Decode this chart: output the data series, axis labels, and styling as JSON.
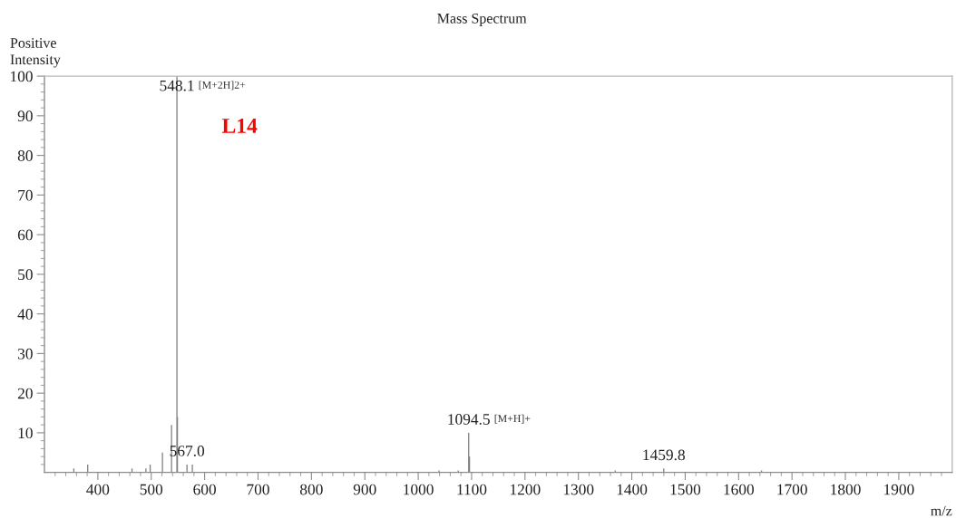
{
  "chart_data": {
    "type": "bar",
    "title": "Mass Spectrum",
    "xlabel": "m/z",
    "ylabel": "Positive\nIntensity",
    "x": [
      355,
      381,
      464,
      490,
      498,
      521,
      538,
      548.1,
      549,
      567,
      577,
      1039,
      1075,
      1094.5,
      1096,
      1369,
      1459.8,
      1643
    ],
    "values": [
      1,
      2,
      1,
      1,
      2,
      5,
      12,
      100,
      14,
      2,
      2,
      0.5,
      0.5,
      10,
      4,
      0.5,
      1,
      0.5
    ],
    "color": "#808080",
    "xlim": [
      300,
      2000
    ],
    "ylim": [
      0,
      100
    ],
    "xticks": [
      {
        "value": 320,
        "label": null
      },
      {
        "value": 340,
        "label": null
      },
      {
        "value": 360,
        "label": null
      },
      {
        "value": 380,
        "label": null
      },
      400,
      {
        "value": 420,
        "label": null
      },
      {
        "value": 440,
        "label": null
      },
      {
        "value": 460,
        "label": null
      },
      {
        "value": 480,
        "label": null
      },
      500,
      {
        "value": 520,
        "label": null
      },
      {
        "value": 540,
        "label": null
      },
      {
        "value": 560,
        "label": null
      },
      {
        "value": 580,
        "label": null
      },
      600,
      {
        "value": 620,
        "label": null
      },
      {
        "value": 640,
        "label": null
      },
      {
        "value": 660,
        "label": null
      },
      {
        "value": 680,
        "label": null
      },
      700,
      {
        "value": 720,
        "label": null
      },
      {
        "value": 740,
        "label": null
      },
      {
        "value": 760,
        "label": null
      },
      {
        "value": 780,
        "label": null
      },
      800,
      {
        "value": 820,
        "label": null
      },
      {
        "value": 840,
        "label": null
      },
      {
        "value": 860,
        "label": null
      },
      {
        "value": 880,
        "label": null
      },
      900,
      {
        "value": 920,
        "label": null
      },
      {
        "value": 940,
        "label": null
      },
      {
        "value": 960,
        "label": null
      },
      {
        "value": 980,
        "label": null
      },
      1000,
      {
        "value": 1020,
        "label": null
      },
      {
        "value": 1040,
        "label": null
      },
      {
        "value": 1060,
        "label": null
      },
      {
        "value": 1080,
        "label": null
      },
      1100,
      {
        "value": 1120,
        "label": null
      },
      {
        "value": 1140,
        "label": null
      },
      {
        "value": 1160,
        "label": null
      },
      {
        "value": 1180,
        "label": null
      },
      1200,
      {
        "value": 1220,
        "label": null
      },
      {
        "value": 1240,
        "label": null
      },
      {
        "value": 1260,
        "label": null
      },
      {
        "value": 1280,
        "label": null
      },
      1300,
      {
        "value": 1320,
        "label": null
      },
      {
        "value": 1340,
        "label": null
      },
      {
        "value": 1360,
        "label": null
      },
      {
        "value": 1380,
        "label": null
      },
      1400,
      {
        "value": 1420,
        "label": null
      },
      {
        "value": 1440,
        "label": null
      },
      {
        "value": 1460,
        "label": null
      },
      {
        "value": 1480,
        "label": null
      },
      1500,
      {
        "value": 1520,
        "label": null
      },
      {
        "value": 1540,
        "label": null
      },
      {
        "value": 1560,
        "label": null
      },
      {
        "value": 1580,
        "label": null
      },
      1600,
      {
        "value": 1620,
        "label": null
      },
      {
        "value": 1640,
        "label": null
      },
      {
        "value": 1660,
        "label": null
      },
      {
        "value": 1680,
        "label": null
      },
      1700,
      {
        "value": 1720,
        "label": null
      },
      {
        "value": 1740,
        "label": null
      },
      {
        "value": 1760,
        "label": null
      },
      {
        "value": 1780,
        "label": null
      },
      1800,
      {
        "value": 1820,
        "label": null
      },
      {
        "value": 1840,
        "label": null
      },
      {
        "value": 1860,
        "label": null
      },
      {
        "value": 1880,
        "label": null
      },
      1900,
      {
        "value": 1920,
        "label": null
      },
      {
        "value": 1940,
        "label": null
      },
      {
        "value": 1960,
        "label": null
      },
      {
        "value": 1980,
        "label": null
      }
    ],
    "yticks": [
      {
        "value": 2,
        "label": null
      },
      {
        "value": 4,
        "label": null
      },
      {
        "value": 6,
        "label": null
      },
      {
        "value": 8,
        "label": null
      },
      10,
      {
        "value": 12,
        "label": null
      },
      {
        "value": 14,
        "label": null
      },
      {
        "value": 16,
        "label": null
      },
      {
        "value": 18,
        "label": null
      },
      20,
      {
        "value": 22,
        "label": null
      },
      {
        "value": 24,
        "label": null
      },
      {
        "value": 26,
        "label": null
      },
      {
        "value": 28,
        "label": null
      },
      30,
      {
        "value": 32,
        "label": null
      },
      {
        "value": 34,
        "label": null
      },
      {
        "value": 36,
        "label": null
      },
      {
        "value": 38,
        "label": null
      },
      40,
      {
        "value": 42,
        "label": null
      },
      {
        "value": 44,
        "label": null
      },
      {
        "value": 46,
        "label": null
      },
      {
        "value": 48,
        "label": null
      },
      50,
      {
        "value": 52,
        "label": null
      },
      {
        "value": 54,
        "label": null
      },
      {
        "value": 56,
        "label": null
      },
      {
        "value": 58,
        "label": null
      },
      60,
      {
        "value": 62,
        "label": null
      },
      {
        "value": 64,
        "label": null
      },
      {
        "value": 66,
        "label": null
      },
      {
        "value": 68,
        "label": null
      },
      70,
      {
        "value": 72,
        "label": null
      },
      {
        "value": 74,
        "label": null
      },
      {
        "value": 76,
        "label": null
      },
      {
        "value": 78,
        "label": null
      },
      80,
      {
        "value": 82,
        "label": null
      },
      {
        "value": 84,
        "label": null
      },
      {
        "value": 86,
        "label": null
      },
      {
        "value": 88,
        "label": null
      },
      90,
      {
        "value": 92,
        "label": null
      },
      {
        "value": 94,
        "label": null
      },
      {
        "value": 96,
        "label": null
      },
      {
        "value": 98,
        "label": null
      },
      100
    ],
    "annotations": [
      {
        "text": "548.1",
        "x": 548.1,
        "y": 100
      },
      {
        "text": "[M+2H]2+",
        "x": 548.1,
        "y": 100
      },
      "L14",
      {
        "text": "567.0",
        "x": 567,
        "y": 2
      },
      {
        "text": "1094.5",
        "x": 1094.5,
        "y": 10
      },
      {
        "text": "[M+H]+",
        "x": 1094.5,
        "y": 10
      },
      {
        "text": "1459.8",
        "x": 1459.8,
        "y": 1
      }
    ]
  }
}
